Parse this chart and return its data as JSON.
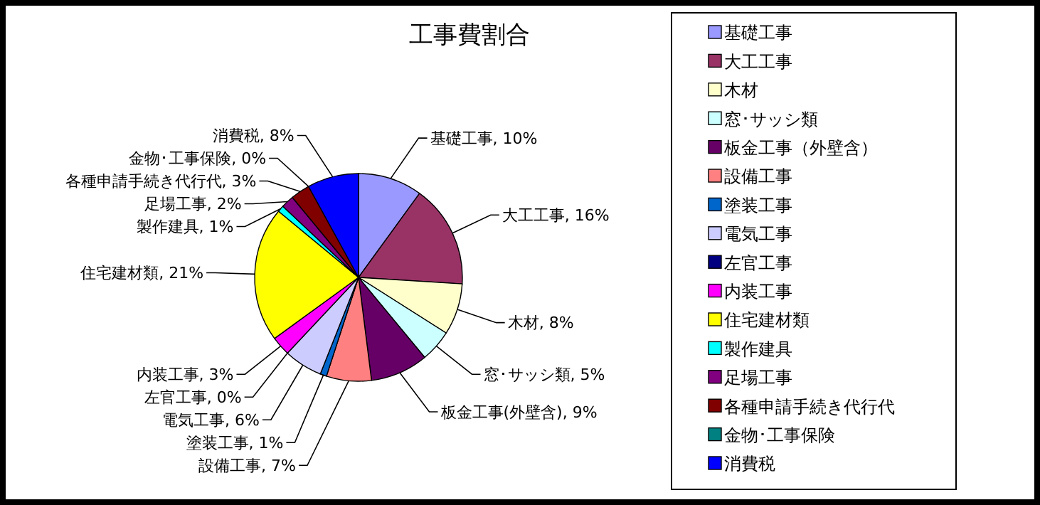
{
  "chart_data": {
    "type": "pie",
    "title": "工事費割合",
    "categories": [
      "基礎工事",
      "大工工事",
      "木材",
      "窓･サッシ類",
      "板金工事（外壁含）",
      "設備工事",
      "塗装工事",
      "電気工事",
      "左官工事",
      "内装工事",
      "住宅建材類",
      "製作建具",
      "足場工事",
      "各種申請手続き代行代",
      "金物･工事保険",
      "消費税"
    ],
    "values": [
      10,
      16,
      8,
      5,
      9,
      7,
      1,
      6,
      0,
      3,
      21,
      1,
      2,
      3,
      0,
      8
    ],
    "colors": [
      "#9999ff",
      "#993366",
      "#ffffcc",
      "#ccffff",
      "#660066",
      "#ff8080",
      "#0066cc",
      "#ccccff",
      "#000080",
      "#ff00ff",
      "#ffff00",
      "#00ffff",
      "#800080",
      "#800000",
      "#008080",
      "#0000ff"
    ],
    "value_labels": [
      "基礎工事, 10%",
      "大工工事, 16%",
      "木材, 8%",
      "窓･サッシ類, 5%",
      "板金工事(外壁含), 9%",
      "設備工事, 7%",
      "塗装工事, 1%",
      "電気工事, 6%",
      "左官工事, 0%",
      "内装工事, 3%",
      "住宅建材類, 21%",
      "製作建具, 1%",
      "足場工事, 2%",
      "各種申請手続き代行代, 3%",
      "金物･工事保険, 0%",
      "消費税, 8%"
    ],
    "legend": "right"
  }
}
